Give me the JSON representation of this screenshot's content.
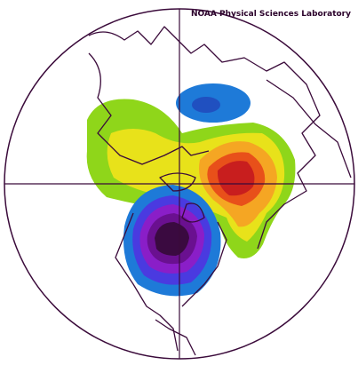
{
  "header": {
    "credit": "NOAA Physical Sciences Laboratory"
  }
}
